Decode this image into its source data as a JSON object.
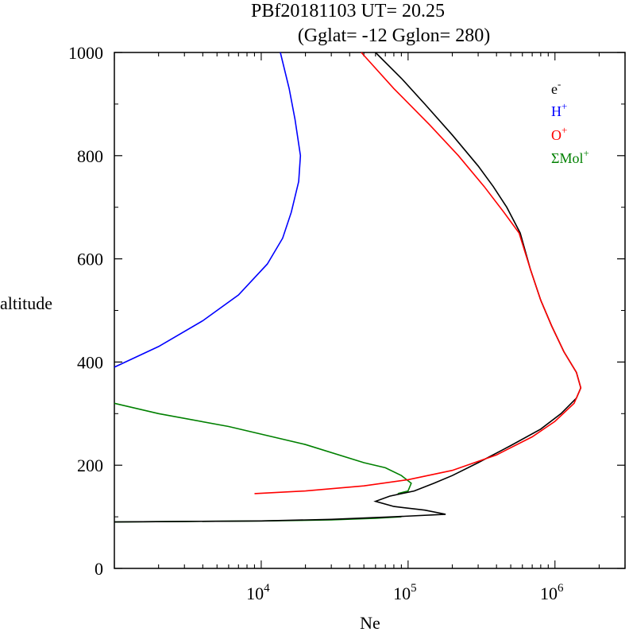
{
  "title_line1": "PBf20181103   UT=  20.25",
  "title_line2": "(Gglat= -12   Gglon=  280)",
  "chart_data": {
    "type": "line",
    "xlabel": "Ne",
    "ylabel": "altitude",
    "xscale": "log",
    "xlim": [
      1000,
      3000000
    ],
    "ylim": [
      0,
      1000
    ],
    "y_ticks": [
      "0",
      "200",
      "400",
      "600",
      "800",
      "1000"
    ],
    "x_ticks": [
      {
        "value": 10000,
        "base": "10",
        "exp": "4"
      },
      {
        "value": 100000,
        "base": "10",
        "exp": "5"
      },
      {
        "value": 1000000,
        "base": "10",
        "exp": "6"
      }
    ],
    "legend_position": "top-right",
    "series": [
      {
        "key": "e",
        "name": "e",
        "sup": "-",
        "color": "#000000",
        "points": [
          [
            1000,
            90
          ],
          [
            3000,
            91
          ],
          [
            10000,
            92
          ],
          [
            30000,
            95
          ],
          [
            80000,
            100
          ],
          [
            180000,
            105
          ],
          [
            130000,
            113
          ],
          [
            80000,
            120
          ],
          [
            60000,
            130
          ],
          [
            75000,
            140
          ],
          [
            110000,
            150
          ],
          [
            150000,
            165
          ],
          [
            200000,
            180
          ],
          [
            300000,
            205
          ],
          [
            500000,
            238
          ],
          [
            800000,
            270
          ],
          [
            1100000,
            300
          ],
          [
            1400000,
            330
          ],
          [
            1500000,
            350
          ],
          [
            1400000,
            380
          ],
          [
            1150000,
            420
          ],
          [
            950000,
            470
          ],
          [
            800000,
            520
          ],
          [
            680000,
            580
          ],
          [
            580000,
            650
          ],
          [
            470000,
            700
          ],
          [
            380000,
            740
          ],
          [
            300000,
            780
          ],
          [
            200000,
            840
          ],
          [
            130000,
            900
          ],
          [
            90000,
            950
          ],
          [
            60000,
            1000
          ]
        ]
      },
      {
        "key": "h",
        "name": "H",
        "sup": "+",
        "color": "#0000ff",
        "points": [
          [
            1000,
            390
          ],
          [
            2000,
            430
          ],
          [
            4000,
            480
          ],
          [
            7000,
            530
          ],
          [
            11000,
            590
          ],
          [
            14000,
            640
          ],
          [
            16000,
            690
          ],
          [
            18000,
            750
          ],
          [
            18500,
            800
          ],
          [
            17000,
            870
          ],
          [
            15500,
            930
          ],
          [
            13500,
            1000
          ]
        ]
      },
      {
        "key": "o",
        "name": "O",
        "sup": "+",
        "color": "#ff0000",
        "points": [
          [
            9000,
            145
          ],
          [
            20000,
            150
          ],
          [
            50000,
            160
          ],
          [
            100000,
            172
          ],
          [
            200000,
            190
          ],
          [
            400000,
            220
          ],
          [
            700000,
            255
          ],
          [
            1000000,
            285
          ],
          [
            1350000,
            320
          ],
          [
            1500000,
            350
          ],
          [
            1400000,
            380
          ],
          [
            1150000,
            420
          ],
          [
            950000,
            470
          ],
          [
            800000,
            520
          ],
          [
            680000,
            580
          ],
          [
            570000,
            650
          ],
          [
            450000,
            690
          ],
          [
            330000,
            740
          ],
          [
            220000,
            800
          ],
          [
            140000,
            860
          ],
          [
            80000,
            930
          ],
          [
            48000,
            1000
          ]
        ]
      },
      {
        "key": "mol",
        "name": "ΣMol",
        "sup": "+",
        "color": "#008000",
        "points": [
          [
            1000,
            90
          ],
          [
            3000,
            91
          ],
          [
            10000,
            92
          ],
          [
            30000,
            94
          ],
          [
            60000,
            97
          ],
          [
            90000,
            100
          ],
          [
            1000,
            90
          ]
        ],
        "points_upper": [
          [
            85000,
            145
          ],
          [
            100000,
            150
          ],
          [
            105000,
            165
          ],
          [
            90000,
            180
          ],
          [
            70000,
            195
          ],
          [
            50000,
            205
          ],
          [
            20000,
            240
          ],
          [
            6000,
            275
          ],
          [
            2000,
            300
          ],
          [
            1000,
            320
          ]
        ]
      }
    ]
  }
}
